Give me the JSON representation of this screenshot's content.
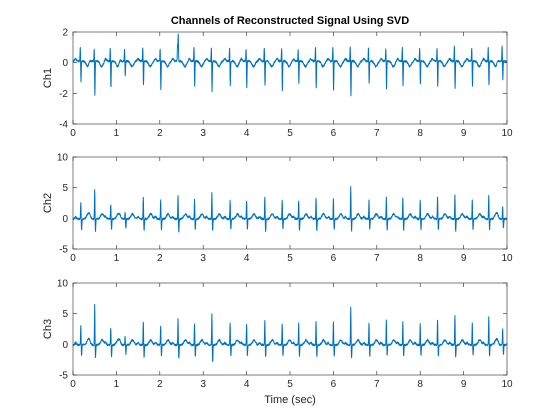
{
  "figure": {
    "title": "Channels of Reconstructed Signal Using SVD",
    "xlabel": "Time (sec)"
  },
  "colors": {
    "line": "#0072BD",
    "axes": "#262626",
    "background": "#ffffff"
  },
  "chart_data": [
    {
      "type": "line",
      "ylabel": "Ch1",
      "xlim": [
        0,
        10
      ],
      "ylim": [
        -4,
        2
      ],
      "xticks": [
        0,
        1,
        2,
        3,
        4,
        5,
        6,
        7,
        8,
        9,
        10
      ],
      "yticks": [
        -4,
        -2,
        0,
        2
      ],
      "grid": false,
      "beats": [
        0.18,
        0.5,
        0.87,
        1.2,
        1.62,
        2.02,
        2.42,
        2.8,
        3.2,
        3.62,
        4.0,
        4.42,
        4.82,
        5.2,
        5.6,
        6.0,
        6.4,
        6.82,
        7.22,
        7.6,
        8.0,
        8.4,
        8.8,
        9.2,
        9.58,
        9.9
      ],
      "beat_peaks": [
        -1.4,
        -2.2,
        -1.8,
        -1.0,
        -1.6,
        -1.9,
        1.8,
        -1.6,
        -2.0,
        -1.6,
        -1.7,
        -1.6,
        -1.9,
        -1.5,
        -1.7,
        -1.9,
        -2.3,
        -1.5,
        -1.8,
        -1.6,
        -1.5,
        -1.7,
        -1.8,
        -1.7,
        -1.6,
        -1.2
      ],
      "beat_up": [
        0.9,
        0.8,
        0.9,
        0.8,
        0.9,
        0.8,
        1.0,
        0.9,
        0.9,
        0.9,
        0.8,
        0.9,
        0.9,
        0.8,
        0.9,
        0.9,
        1.0,
        0.9,
        0.8,
        0.9,
        0.9,
        0.9,
        1.0,
        0.9,
        0.9,
        1.0
      ],
      "baseline": 0.1
    },
    {
      "type": "line",
      "ylabel": "Ch2",
      "xlim": [
        0,
        10
      ],
      "ylim": [
        -5,
        10
      ],
      "xticks": [
        0,
        1,
        2,
        3,
        4,
        5,
        6,
        7,
        8,
        9,
        10
      ],
      "yticks": [
        -5,
        0,
        5,
        10
      ],
      "grid": false,
      "beats": [
        0.18,
        0.5,
        0.87,
        1.2,
        1.62,
        2.02,
        2.42,
        2.8,
        3.2,
        3.62,
        4.0,
        4.42,
        4.82,
        5.2,
        5.6,
        6.0,
        6.4,
        6.82,
        7.22,
        7.6,
        8.0,
        8.4,
        8.8,
        9.2,
        9.58,
        9.9
      ],
      "beat_peaks": [
        2.8,
        4.9,
        2.5,
        1.2,
        3.5,
        3.0,
        3.8,
        3.2,
        4.2,
        3.0,
        3.0,
        3.5,
        3.2,
        3.0,
        3.5,
        3.4,
        5.3,
        3.0,
        3.5,
        3.4,
        3.2,
        3.5,
        4.0,
        3.2,
        4.0,
        2.0
      ],
      "beat_down": [
        -1.8,
        -2.0,
        -1.8,
        -1.5,
        -2.0,
        -1.8,
        -2.2,
        -1.8,
        -2.0,
        -1.8,
        -1.8,
        -2.0,
        -1.8,
        -1.8,
        -2.0,
        -1.8,
        -2.0,
        -1.8,
        -1.8,
        -1.8,
        -1.8,
        -1.8,
        -2.0,
        -1.8,
        -1.8,
        -1.5
      ],
      "baseline": -0.1
    },
    {
      "type": "line",
      "ylabel": "Ch3",
      "xlim": [
        0,
        10
      ],
      "ylim": [
        -5,
        10
      ],
      "xticks": [
        0,
        1,
        2,
        3,
        4,
        5,
        6,
        7,
        8,
        9,
        10
      ],
      "yticks": [
        -5,
        0,
        5,
        10
      ],
      "grid": false,
      "beats": [
        0.18,
        0.5,
        0.87,
        1.2,
        1.62,
        2.02,
        2.42,
        2.8,
        3.2,
        3.62,
        4.0,
        4.42,
        4.82,
        5.2,
        5.6,
        6.0,
        6.4,
        6.82,
        7.22,
        7.6,
        8.0,
        8.4,
        8.8,
        9.2,
        9.58,
        9.9
      ],
      "beat_peaks": [
        3.2,
        6.5,
        3.0,
        1.5,
        3.8,
        3.2,
        4.2,
        3.5,
        5.0,
        3.5,
        3.5,
        4.0,
        3.5,
        3.5,
        4.0,
        3.8,
        6.2,
        3.5,
        4.0,
        3.8,
        3.5,
        4.2,
        4.8,
        3.5,
        4.5,
        2.5
      ],
      "beat_down": [
        -1.8,
        -2.2,
        -1.8,
        -1.5,
        -2.0,
        -1.8,
        -2.2,
        -1.8,
        -3.0,
        -1.8,
        -1.8,
        -2.0,
        -1.8,
        -1.8,
        -2.0,
        -1.8,
        -2.2,
        -1.8,
        -1.8,
        -1.8,
        -1.8,
        -1.8,
        -2.0,
        -1.8,
        -1.8,
        -1.5
      ],
      "baseline": -0.1
    }
  ]
}
